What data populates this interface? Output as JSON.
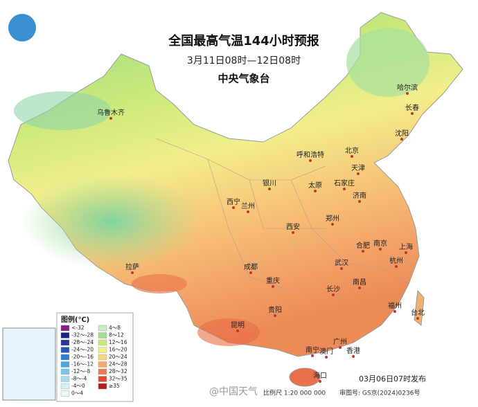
{
  "header": {
    "title": "全国最高气温144小时预报",
    "subtitle": "3月11日08时—12日08时",
    "issuer": "中央气象台"
  },
  "cities": [
    "乌鲁木齐",
    "哈尔滨",
    "长春",
    "沈阳",
    "北京",
    "天津",
    "呼和浩特",
    "石家庄",
    "银川",
    "太原",
    "济南",
    "西宁",
    "兰州",
    "郑州",
    "西安",
    "合肥",
    "南京",
    "上海",
    "拉萨",
    "成都",
    "武汉",
    "杭州",
    "重庆",
    "南昌",
    "长沙",
    "福州",
    "台北",
    "贵阳",
    "昆明",
    "广州",
    "南宁",
    "澳门",
    "香港",
    "海口"
  ],
  "legend": {
    "title": "图例(℃)",
    "items": [
      {
        "label": "<-32",
        "color": "#8c1a8c"
      },
      {
        "label": "-32～-28",
        "color": "#1a237e"
      },
      {
        "label": "-28～-24",
        "color": "#283593"
      },
      {
        "label": "-24～-20",
        "color": "#1e5bb0"
      },
      {
        "label": "-20～-16",
        "color": "#2f7fd0"
      },
      {
        "label": "-16～-12",
        "color": "#4ea3e6"
      },
      {
        "label": "-12～-8",
        "color": "#7cc4f0"
      },
      {
        "label": "-8～-4",
        "color": "#a8dcf5"
      },
      {
        "label": "-4～0",
        "color": "#d4eefa"
      },
      {
        "label": "0～4",
        "color": "#e8f7f0"
      },
      {
        "label": "4～8",
        "color": "#c6ecc0"
      },
      {
        "label": "8～12",
        "color": "#9fdf8e"
      },
      {
        "label": "12～16",
        "color": "#c9e97a"
      },
      {
        "label": "16～20",
        "color": "#f2f08a"
      },
      {
        "label": "20～24",
        "color": "#f9d67a"
      },
      {
        "label": "24～28",
        "color": "#f5a96a"
      },
      {
        "label": "28～32",
        "color": "#ee7b50"
      },
      {
        "label": "32～35",
        "color": "#e04a30"
      },
      {
        "label": "≥35",
        "color": "#b51f1f"
      }
    ]
  },
  "footer": {
    "issued": "03月06日07时发布",
    "scale": "比例尺 1:20 000 000",
    "approval": "审图号: GS京(2024)0236号",
    "watermark": "@中国天气"
  }
}
